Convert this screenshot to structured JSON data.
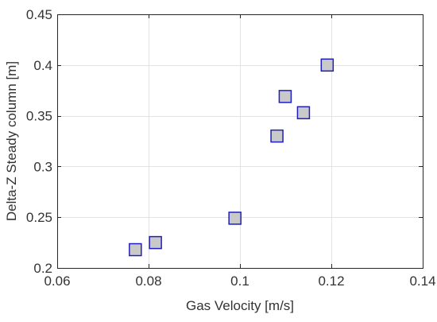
{
  "chart_data": {
    "type": "scatter",
    "xlabel": "Gas Velocity [m/s]",
    "ylabel": "Delta-Z Steady column [m]",
    "xlim": [
      0.06,
      0.14
    ],
    "ylim": [
      0.2,
      0.45
    ],
    "xticks": [
      0.06,
      0.08,
      0.1,
      0.12,
      0.14
    ],
    "yticks": [
      0.2,
      0.25,
      0.3,
      0.35,
      0.4,
      0.45
    ],
    "xtick_labels": [
      "0.06",
      "0.08",
      "0.1",
      "0.12",
      "0.14"
    ],
    "ytick_labels": [
      "0.2",
      "0.25",
      "0.3",
      "0.35",
      "0.4",
      "0.45"
    ],
    "grid": true,
    "marker": "square",
    "marker_face_color": "#c9c9c9",
    "marker_edge_color": "#1f1fbf",
    "points": [
      {
        "x": 0.0771,
        "y": 0.218
      },
      {
        "x": 0.0815,
        "y": 0.225
      },
      {
        "x": 0.0989,
        "y": 0.249
      },
      {
        "x": 0.1081,
        "y": 0.33
      },
      {
        "x": 0.1099,
        "y": 0.369
      },
      {
        "x": 0.1139,
        "y": 0.353
      },
      {
        "x": 0.1191,
        "y": 0.4
      }
    ]
  }
}
